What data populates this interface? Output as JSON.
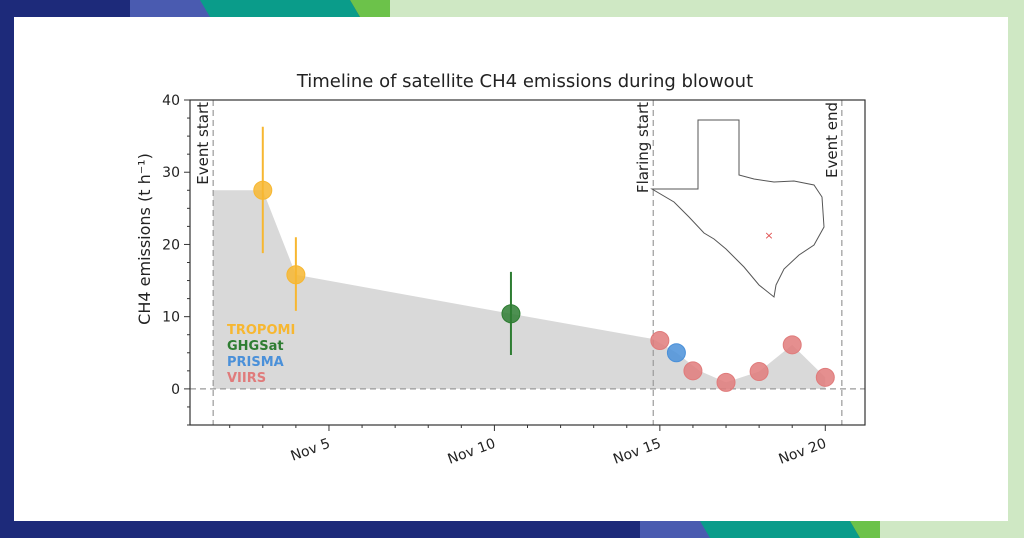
{
  "colors": {
    "frame_navy": "#1d2a7a",
    "frame_blue": "#4a5bb0",
    "frame_teal": "#0a9c8a",
    "frame_green": "#6cc24a",
    "frame_pale_green": "#cfe8c4",
    "card": "#ffffff"
  },
  "chart_data": {
    "type": "scatter",
    "title": "Timeline of satellite CH4 emissions during blowout",
    "ylabel": "CH4 emissions (t h⁻¹)",
    "xlabel": "",
    "ylim": [
      -5,
      40
    ],
    "yticks": [
      0,
      10,
      20,
      30,
      40
    ],
    "xlim": [
      0.8,
      21.2
    ],
    "xtick_labels": [
      {
        "x": 5,
        "label": "Nov 5"
      },
      {
        "x": 10,
        "label": "Nov 10"
      },
      {
        "x": 15,
        "label": "Nov 15"
      },
      {
        "x": 20,
        "label": "Nov 20"
      }
    ],
    "zero_line": 0,
    "events": [
      {
        "x": 1.5,
        "label": "Event start"
      },
      {
        "x": 14.8,
        "label": "Flaring start"
      },
      {
        "x": 20.5,
        "label": "Event end"
      }
    ],
    "shaded_area": {
      "color": "#d9d9d9",
      "x": [
        1.5,
        3.0,
        4.0,
        10.5,
        14.8,
        15.5,
        16.2,
        17.0,
        18.0,
        19.0,
        20.0
      ],
      "y": [
        27.5,
        27.5,
        15.8,
        10.4,
        6.9,
        5.0,
        2.5,
        0.9,
        2.4,
        6.1,
        1.6
      ]
    },
    "legend_placement": "left",
    "series": [
      {
        "name": "TROPOMI",
        "color": "#f7b731",
        "points": [
          {
            "x": 3.0,
            "y": 27.5,
            "err_low": 18.8,
            "err_high": 36.3
          },
          {
            "x": 4.0,
            "y": 15.8,
            "err_low": 10.8,
            "err_high": 21.0
          }
        ]
      },
      {
        "name": "GHGSat",
        "color": "#2e7d32",
        "points": [
          {
            "x": 10.5,
            "y": 10.4,
            "err_low": 4.7,
            "err_high": 16.2
          }
        ]
      },
      {
        "name": "PRISMA",
        "color": "#4a90d9",
        "points": [
          {
            "x": 15.5,
            "y": 5.0
          }
        ]
      },
      {
        "name": "VIIRS",
        "color": "#e07b7b",
        "points": [
          {
            "x": 15.0,
            "y": 6.7
          },
          {
            "x": 16.0,
            "y": 2.5
          },
          {
            "x": 17.0,
            "y": 0.9
          },
          {
            "x": 18.0,
            "y": 2.4
          },
          {
            "x": 19.0,
            "y": 6.1
          },
          {
            "x": 20.0,
            "y": 1.6
          }
        ]
      }
    ],
    "inset": {
      "map_region": "Texas",
      "marker": "x",
      "marker_color": "#e05050"
    }
  }
}
